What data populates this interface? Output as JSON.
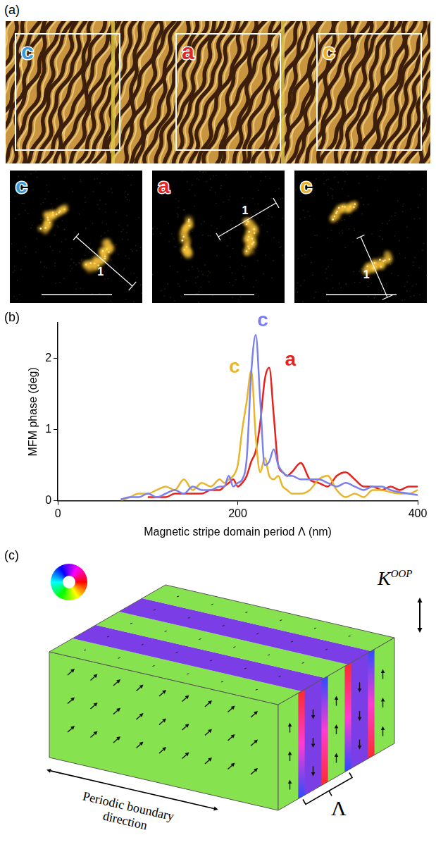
{
  "panel_a": {
    "letter": "(a)",
    "regions": [
      {
        "label": "c",
        "color": "#3a9ad9"
      },
      {
        "label": "a",
        "color": "#e3262a"
      },
      {
        "label": "c",
        "color": "#f0b020"
      }
    ],
    "fft_label": "1"
  },
  "panel_b": {
    "letter": "(b)"
  },
  "chart_data": {
    "type": "line",
    "x_label": "Magnetic stripe domain period Λ (nm)",
    "y_label": "MFM phase (deg)",
    "x": [
      70,
      80,
      90,
      100,
      110,
      120,
      130,
      140,
      150,
      160,
      170,
      180,
      185,
      190,
      195,
      200,
      205,
      210,
      215,
      220,
      225,
      230,
      235,
      240,
      245,
      250,
      255,
      260,
      270,
      280,
      290,
      300,
      310,
      320,
      330,
      340,
      350,
      360,
      370,
      380,
      390,
      400
    ],
    "series": [
      {
        "name": "c",
        "color": "#7b80ea",
        "values": [
          0.02,
          0.05,
          0.05,
          0.1,
          0.05,
          0.1,
          0.15,
          0.1,
          0.2,
          0.15,
          0.15,
          0.2,
          0.2,
          0.35,
          0.2,
          0.25,
          0.3,
          0.6,
          1.8,
          2.33,
          1.4,
          0.5,
          0.55,
          0.72,
          0.5,
          0.4,
          0.35,
          0.35,
          0.3,
          0.3,
          0.3,
          0.25,
          0.2,
          0.25,
          0.2,
          0.15,
          0.2,
          0.2,
          0.15,
          0.12,
          0.1,
          0.08
        ]
      },
      {
        "name": "c",
        "color": "#e8b52a",
        "values": [
          0,
          0.05,
          0.1,
          0.1,
          0.15,
          0.2,
          0.15,
          0.3,
          0.15,
          0.25,
          0.2,
          0.3,
          0.25,
          0.3,
          0.35,
          0.5,
          1.0,
          1.4,
          1.83,
          0.9,
          0.4,
          0.6,
          0.35,
          0.3,
          0.35,
          0.2,
          0.15,
          0.1,
          0.1,
          0.15,
          0.3,
          0.35,
          0.15,
          0.05,
          0.1,
          0.05,
          0.15,
          0.15,
          0.12,
          0.1,
          0.1,
          0.15
        ]
      },
      {
        "name": "a",
        "color": "#e8211d",
        "values": [
          null,
          null,
          null,
          0.05,
          0.05,
          0.05,
          0.1,
          0.1,
          0.1,
          0.1,
          0.15,
          0.15,
          0.2,
          0.25,
          0.3,
          0.2,
          0.25,
          0.35,
          0.55,
          0.7,
          1.1,
          1.7,
          1.87,
          1.2,
          0.5,
          0.4,
          0.35,
          0.4,
          0.53,
          0.3,
          0.25,
          0.2,
          0.35,
          0.4,
          0.3,
          0.2,
          0.2,
          0.15,
          0.2,
          0.15,
          0.2,
          0.2
        ]
      }
    ],
    "xlim": [
      0,
      400
    ],
    "xticks": [
      0,
      200,
      400
    ],
    "ylim": [
      0,
      2.5
    ],
    "yticks": [
      0,
      1,
      2
    ],
    "grid": false
  },
  "panel_c": {
    "letter": "(c)",
    "anisotropy_label": {
      "text": "K",
      "superscript": "OOP"
    },
    "period_label": "Λ",
    "boundary_label": "Periodic boundary direction"
  }
}
